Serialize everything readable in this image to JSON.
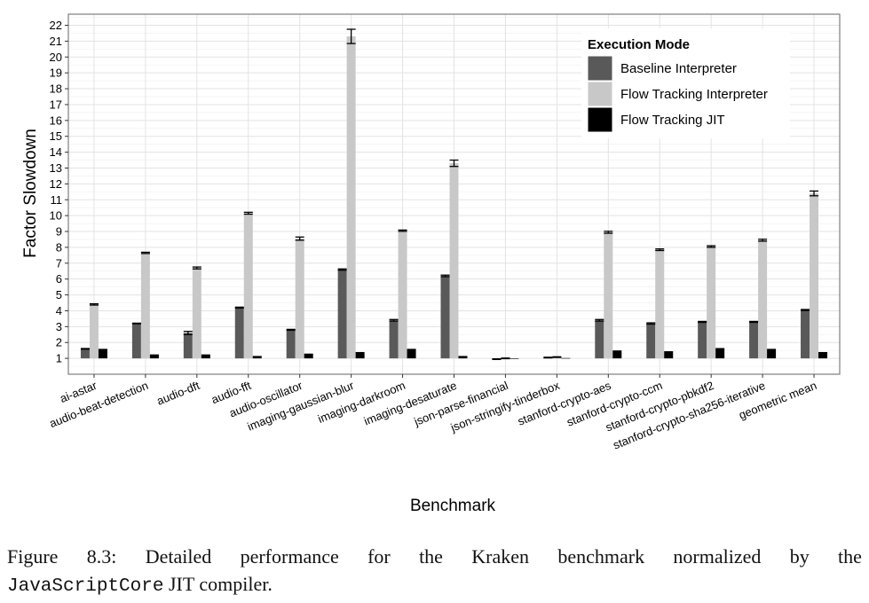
{
  "chart_data": {
    "type": "bar",
    "xlabel": "Benchmark",
    "ylabel": "Factor Slowdown",
    "ylim": [
      0,
      22.7
    ],
    "yticks": [
      1,
      2,
      3,
      4,
      5,
      6,
      7,
      8,
      9,
      10,
      11,
      12,
      13,
      14,
      15,
      16,
      17,
      18,
      19,
      20,
      21,
      22
    ],
    "grid": true,
    "legend": {
      "title": "Execution Mode",
      "position": "top-right"
    },
    "categories": [
      "ai-astar",
      "audio-beat-detection",
      "audio-dft",
      "audio-fft",
      "audio-oscillator",
      "imaging-gaussian-blur",
      "imaging-darkroom",
      "imaging-desaturate",
      "json-parse-financial",
      "json-stringify-tinderbox",
      "stanford-crypto-aes",
      "stanford-crypto-ccm",
      "stanford-crypto-pbkdf2",
      "stanford-crypto-sha256-iterative",
      "geometric mean"
    ],
    "series": [
      {
        "name": "Baseline Interpreter",
        "color": "#595959",
        "values": [
          1.6,
          3.2,
          2.6,
          4.2,
          2.8,
          6.6,
          3.4,
          6.2,
          0.95,
          1.05,
          3.4,
          3.2,
          3.3,
          3.3,
          4.05
        ],
        "errors": [
          0.02,
          0.02,
          0.1,
          0.03,
          0.03,
          0.04,
          0.05,
          0.05,
          0.02,
          0.02,
          0.05,
          0.04,
          0.03,
          0.03,
          0.03
        ]
      },
      {
        "name": "Flow Tracking Interpreter",
        "color": "#c8c8c8",
        "values": [
          4.4,
          7.65,
          6.7,
          10.15,
          8.55,
          21.3,
          9.05,
          13.3,
          1.0,
          1.08,
          8.95,
          7.85,
          8.05,
          8.45,
          11.4
        ],
        "errors": [
          0.04,
          0.04,
          0.06,
          0.06,
          0.1,
          0.45,
          0.04,
          0.2,
          0.02,
          0.02,
          0.06,
          0.05,
          0.05,
          0.06,
          0.15
        ]
      },
      {
        "name": "Flow Tracking JIT",
        "color": "#000000",
        "values": [
          1.6,
          1.25,
          1.25,
          1.15,
          1.3,
          1.4,
          1.6,
          1.15,
          1.0,
          1.02,
          1.5,
          1.45,
          1.65,
          1.6,
          1.4
        ],
        "errors": [
          0,
          0,
          0,
          0,
          0,
          0,
          0,
          0,
          0,
          0,
          0,
          0,
          0,
          0,
          0
        ]
      }
    ]
  },
  "caption": {
    "words": [
      "Figure",
      "8.3:",
      "Detailed",
      "performance",
      "for",
      "the",
      "Kraken",
      "benchmark",
      "normalized",
      "by",
      "the"
    ],
    "code": "JavaScriptCore",
    "rest": " JIT compiler."
  }
}
